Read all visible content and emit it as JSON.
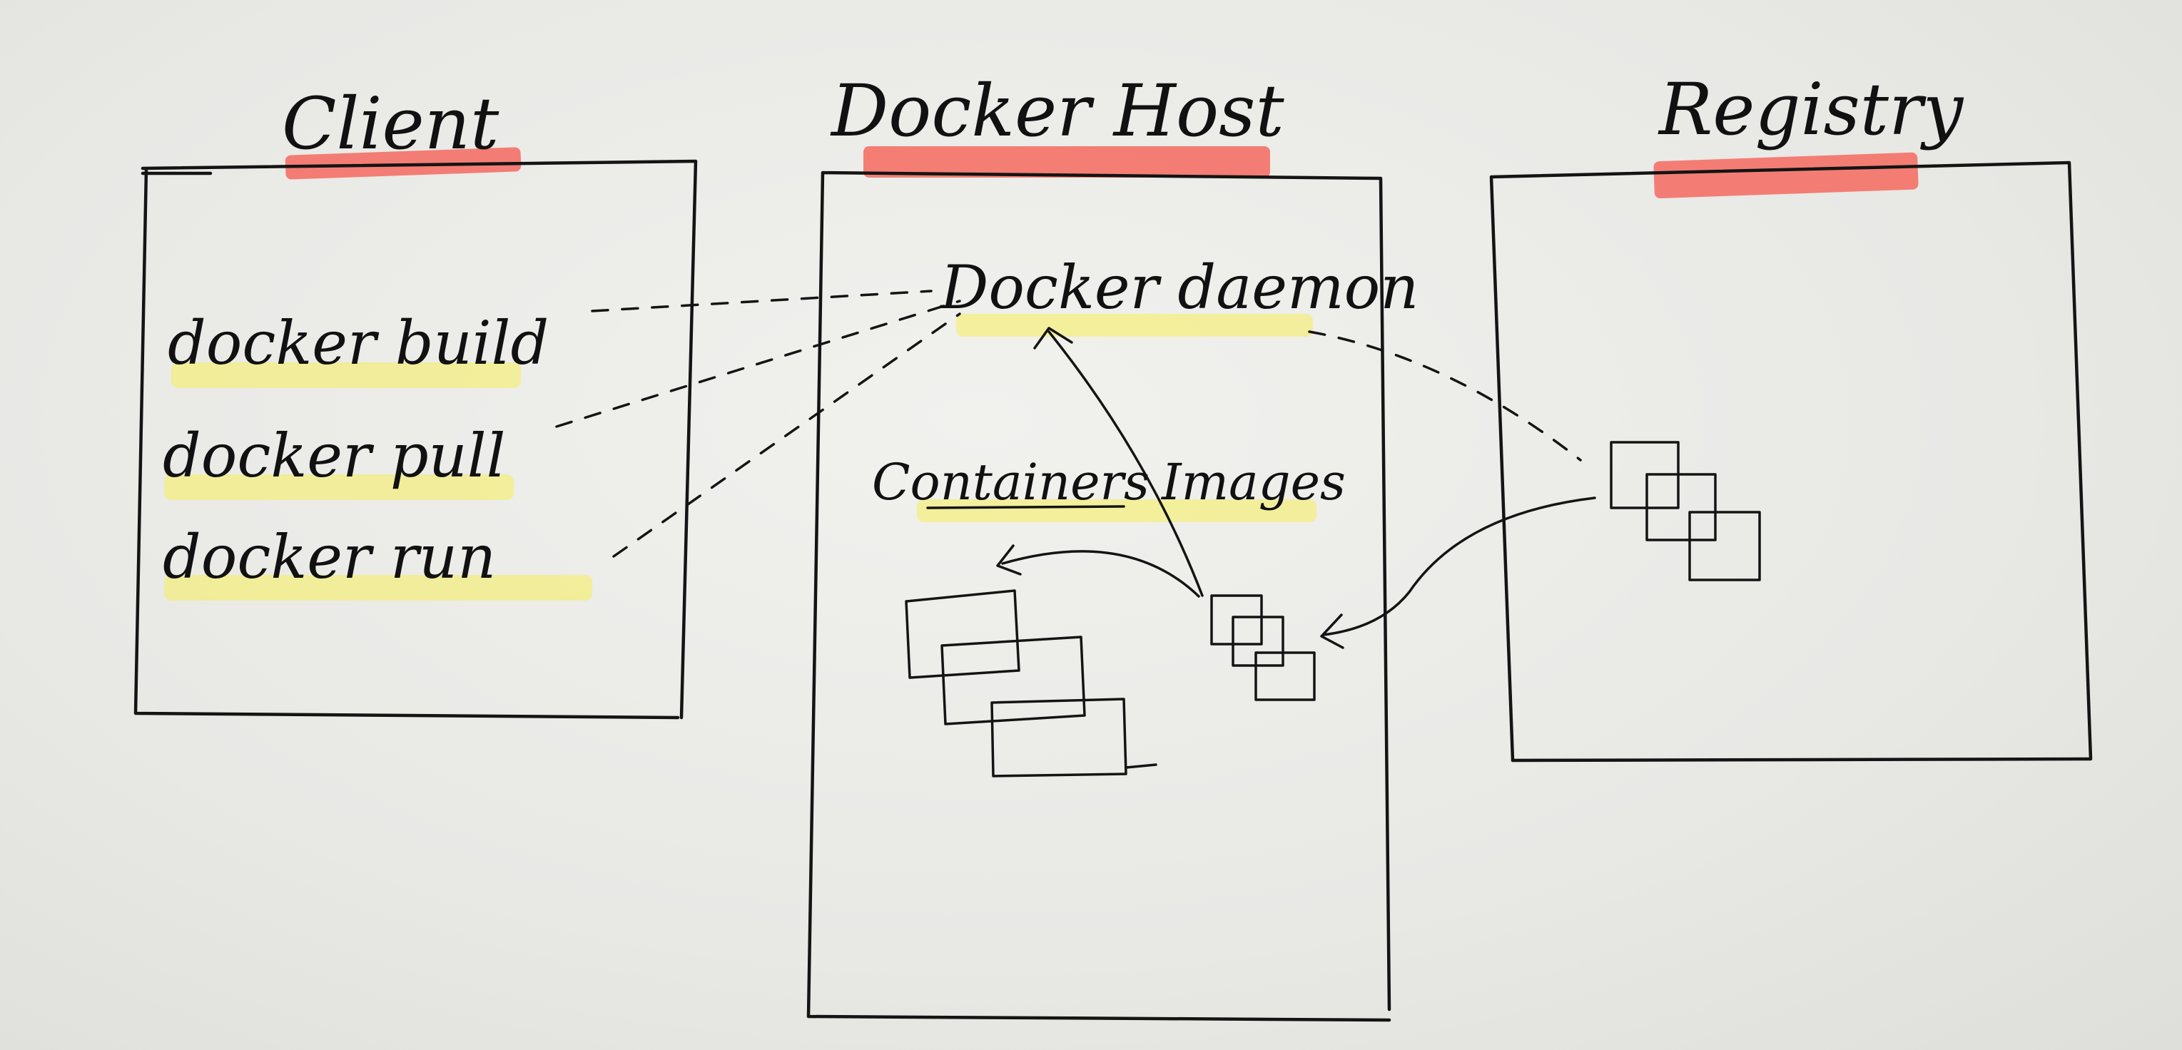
{
  "client": {
    "title": "Client",
    "commands": [
      "docker build",
      "docker pull",
      "docker run"
    ]
  },
  "docker_host": {
    "title": "Docker Host",
    "daemon": "Docker daemon",
    "containers_label": "Containers",
    "images_label": "Images"
  },
  "registry": {
    "title": "Registry"
  },
  "colors": {
    "ink": "#141414",
    "title_highlight": "#f46a5f",
    "text_highlight": "#f6ef5a",
    "paper": "#ecece9"
  }
}
